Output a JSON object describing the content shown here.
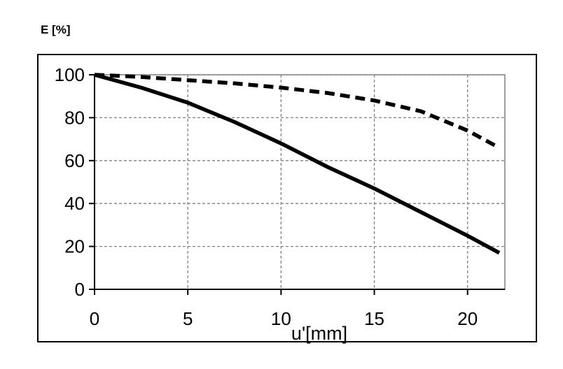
{
  "chart_data": {
    "type": "line",
    "title": "",
    "ylabel": "E [%]",
    "xlabel": "u'[mm]",
    "xlim": [
      0,
      22
    ],
    "ylim": [
      0,
      100
    ],
    "x_ticks": [
      0,
      5,
      10,
      15,
      20
    ],
    "y_ticks": [
      0,
      20,
      40,
      60,
      80,
      100
    ],
    "grid": true,
    "legend": "none",
    "series": [
      {
        "style": "solid",
        "color": "#000000",
        "x": [
          0,
          2.5,
          5,
          7.5,
          10,
          12.5,
          15,
          17.5,
          20,
          21.7
        ],
        "y": [
          100,
          94,
          87,
          78,
          68,
          57,
          47,
          36,
          25,
          17
        ]
      },
      {
        "style": "dashed",
        "color": "#000000",
        "x": [
          0,
          2.5,
          5,
          7.5,
          10,
          12.5,
          15,
          17.5,
          20,
          21.7
        ],
        "y": [
          100,
          99,
          97.5,
          96,
          94,
          91.5,
          88,
          83,
          74,
          66
        ]
      }
    ]
  }
}
